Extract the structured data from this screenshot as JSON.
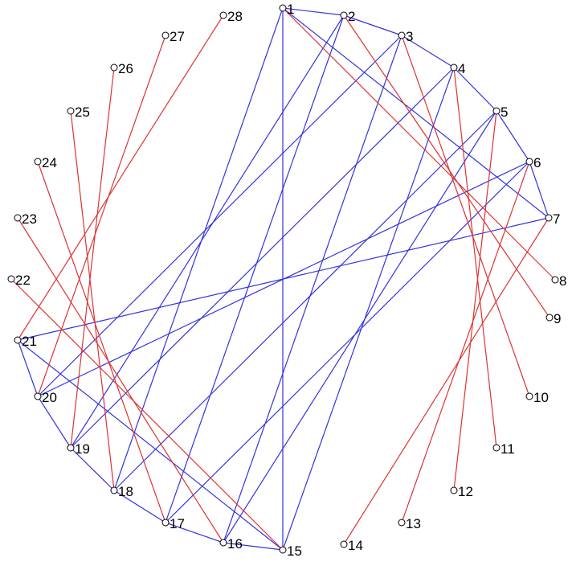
{
  "colors": {
    "blue_edge": "#3333dd",
    "red_edge": "#dd3333",
    "node_stroke": "#000000",
    "label": "#000000"
  },
  "nodes": [
    {
      "id": 1,
      "label": "1"
    },
    {
      "id": 2,
      "label": "2"
    },
    {
      "id": 3,
      "label": "3"
    },
    {
      "id": 4,
      "label": "4"
    },
    {
      "id": 5,
      "label": "5"
    },
    {
      "id": 6,
      "label": "6"
    },
    {
      "id": 7,
      "label": "7"
    },
    {
      "id": 8,
      "label": "8"
    },
    {
      "id": 9,
      "label": "9"
    },
    {
      "id": 10,
      "label": "10"
    },
    {
      "id": 11,
      "label": "11"
    },
    {
      "id": 12,
      "label": "12"
    },
    {
      "id": 13,
      "label": "13"
    },
    {
      "id": 14,
      "label": "14"
    },
    {
      "id": 15,
      "label": "15"
    },
    {
      "id": 16,
      "label": "16"
    },
    {
      "id": 17,
      "label": "17"
    },
    {
      "id": 18,
      "label": "18"
    },
    {
      "id": 19,
      "label": "19"
    },
    {
      "id": 20,
      "label": "20"
    },
    {
      "id": 21,
      "label": "21"
    },
    {
      "id": 22,
      "label": "22"
    },
    {
      "id": 23,
      "label": "23"
    },
    {
      "id": 24,
      "label": "24"
    },
    {
      "id": 25,
      "label": "25"
    },
    {
      "id": 26,
      "label": "26"
    },
    {
      "id": 27,
      "label": "27"
    },
    {
      "id": 28,
      "label": "28"
    }
  ],
  "edges": [
    {
      "from": 1,
      "to": 2,
      "color": "blue"
    },
    {
      "from": 2,
      "to": 3,
      "color": "blue"
    },
    {
      "from": 3,
      "to": 4,
      "color": "blue"
    },
    {
      "from": 4,
      "to": 5,
      "color": "blue"
    },
    {
      "from": 5,
      "to": 6,
      "color": "blue"
    },
    {
      "from": 6,
      "to": 7,
      "color": "blue"
    },
    {
      "from": 1,
      "to": 7,
      "color": "blue"
    },
    {
      "from": 1,
      "to": 15,
      "color": "blue"
    },
    {
      "from": 1,
      "to": 18,
      "color": "blue"
    },
    {
      "from": 2,
      "to": 17,
      "color": "blue"
    },
    {
      "from": 2,
      "to": 19,
      "color": "blue"
    },
    {
      "from": 3,
      "to": 20,
      "color": "blue"
    },
    {
      "from": 3,
      "to": 16,
      "color": "blue"
    },
    {
      "from": 4,
      "to": 19,
      "color": "blue"
    },
    {
      "from": 4,
      "to": 15,
      "color": "blue"
    },
    {
      "from": 5,
      "to": 18,
      "color": "blue"
    },
    {
      "from": 5,
      "to": 16,
      "color": "blue"
    },
    {
      "from": 6,
      "to": 17,
      "color": "blue"
    },
    {
      "from": 6,
      "to": 20,
      "color": "blue"
    },
    {
      "from": 7,
      "to": 21,
      "color": "blue"
    },
    {
      "from": 21,
      "to": 20,
      "color": "blue"
    },
    {
      "from": 20,
      "to": 19,
      "color": "blue"
    },
    {
      "from": 19,
      "to": 18,
      "color": "blue"
    },
    {
      "from": 18,
      "to": 17,
      "color": "blue"
    },
    {
      "from": 17,
      "to": 16,
      "color": "blue"
    },
    {
      "from": 16,
      "to": 15,
      "color": "blue"
    },
    {
      "from": 21,
      "to": 15,
      "color": "blue"
    },
    {
      "from": 1,
      "to": 8,
      "color": "red"
    },
    {
      "from": 2,
      "to": 9,
      "color": "red"
    },
    {
      "from": 3,
      "to": 10,
      "color": "red"
    },
    {
      "from": 4,
      "to": 11,
      "color": "red"
    },
    {
      "from": 5,
      "to": 12,
      "color": "red"
    },
    {
      "from": 6,
      "to": 13,
      "color": "red"
    },
    {
      "from": 7,
      "to": 14,
      "color": "red"
    },
    {
      "from": 22,
      "to": 15,
      "color": "red"
    },
    {
      "from": 23,
      "to": 16,
      "color": "red"
    },
    {
      "from": 24,
      "to": 17,
      "color": "red"
    },
    {
      "from": 25,
      "to": 18,
      "color": "red"
    },
    {
      "from": 26,
      "to": 19,
      "color": "red"
    },
    {
      "from": 27,
      "to": 20,
      "color": "red"
    },
    {
      "from": 28,
      "to": 21,
      "color": "red"
    }
  ]
}
